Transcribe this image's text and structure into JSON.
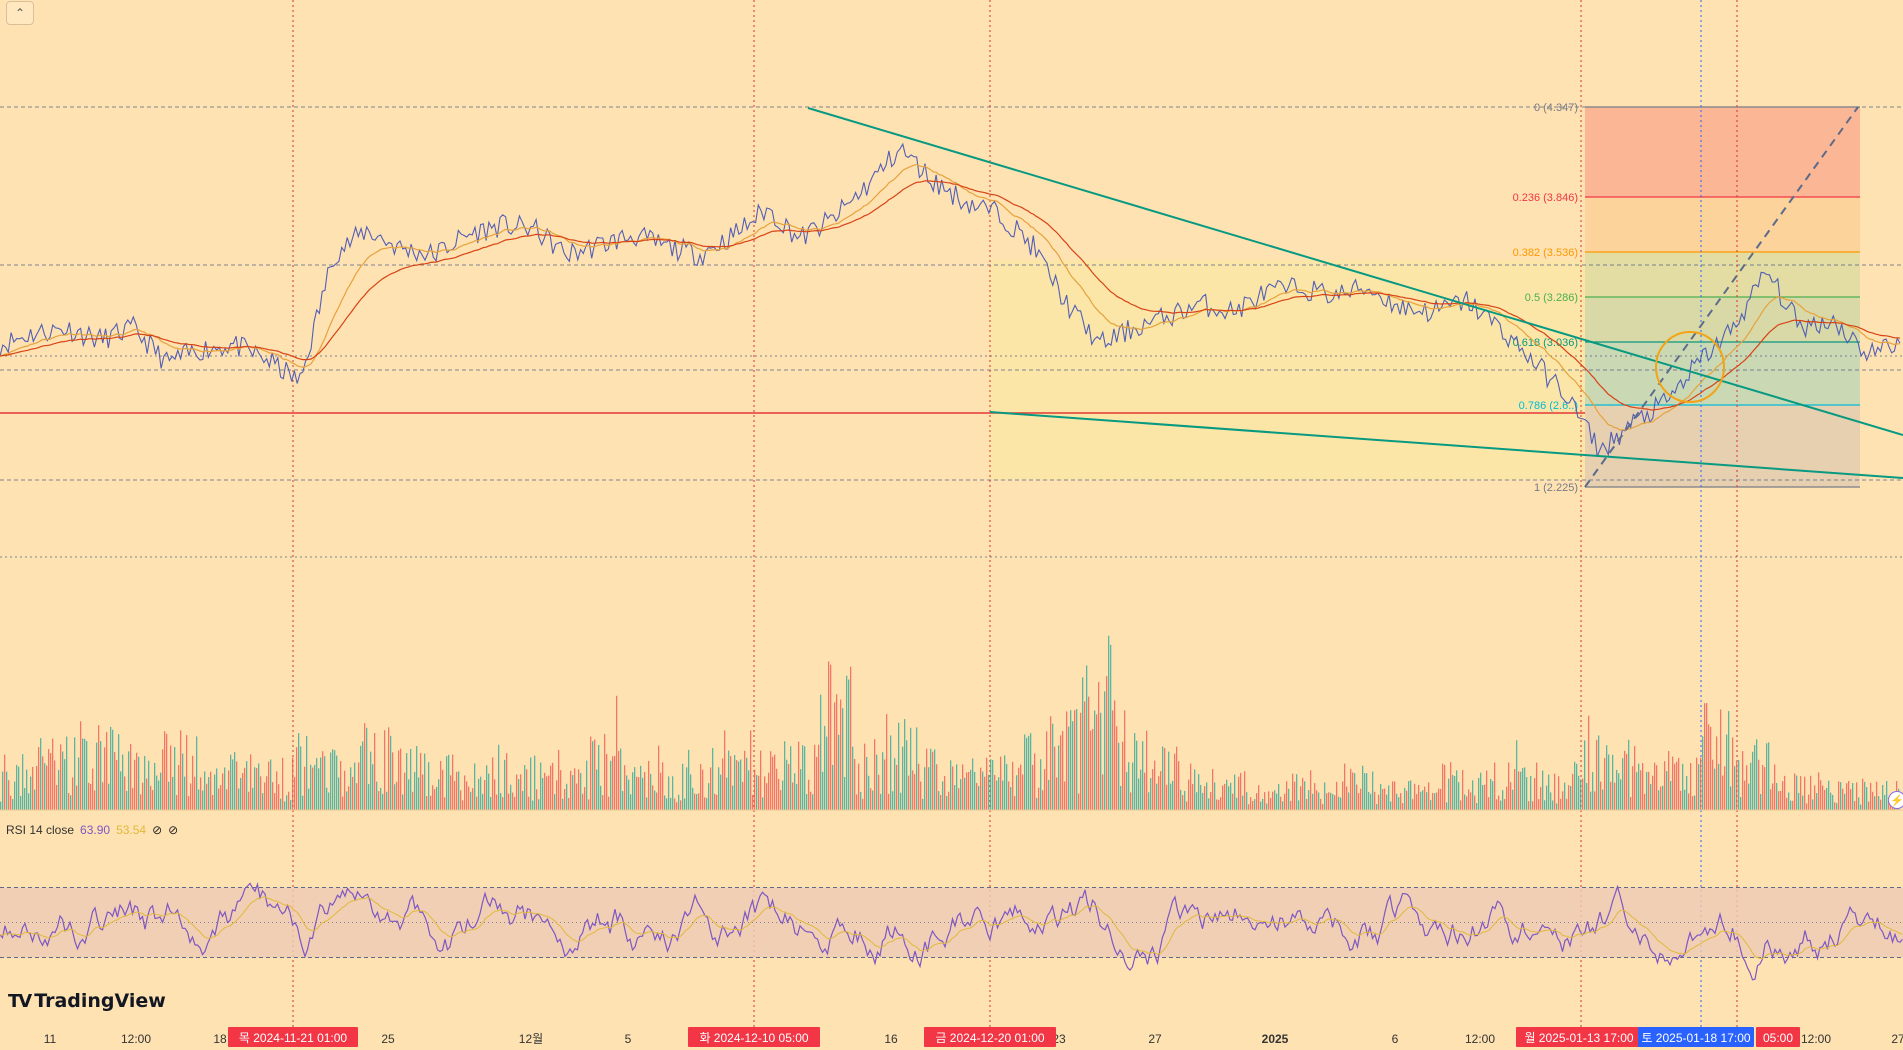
{
  "chart_data": [
    {
      "type": "line",
      "pane": "price",
      "series": [
        {
          "values": [
            2.95,
            3.02,
            3.05,
            2.98,
            3.05,
            2.84,
            2.92,
            2.95,
            2.86,
            2.72,
            3.5,
            3.65,
            3.54,
            3.5,
            3.62,
            3.68,
            3.66,
            3.5,
            3.56,
            3.62,
            3.55,
            3.5,
            3.62,
            3.78,
            3.6,
            3.72,
            3.92,
            4.15,
            3.95,
            3.82,
            3.75,
            3.55,
            3.2,
            2.95,
            3.05,
            3.12,
            3.2,
            3.15,
            3.27,
            3.3,
            3.25,
            3.3,
            3.18,
            3.15,
            3.22,
            3.05,
            2.85,
            2.64,
            2.3,
            2.47,
            2.6,
            2.85,
            3.05,
            3.4,
            3.06,
            3.1,
            2.9,
            2.96
          ]
        }
      ],
      "ylim": [
        2.0,
        4.6
      ]
    },
    {
      "type": "bar",
      "pane": "volume",
      "series": [
        {
          "values": [
            0.35,
            0.45,
            0.6,
            0.55,
            0.4,
            0.5,
            0.3,
            0.4,
            0.35,
            0.5,
            0.45,
            0.55,
            0.4,
            0.35,
            0.3,
            0.45,
            0.35,
            0.4,
            0.5,
            0.35,
            0.3,
            0.4,
            0.5,
            0.45,
            0.5,
            1.0,
            0.45,
            0.6,
            0.4,
            0.35,
            0.35,
            0.5,
            0.65,
            1.15,
            0.7,
            0.4,
            0.3,
            0.25,
            0.2,
            0.25,
            0.2,
            0.3,
            0.2,
            0.2,
            0.3,
            0.25,
            0.3,
            0.25,
            0.6,
            0.45,
            0.4,
            0.35,
            0.7,
            0.5,
            0.3,
            0.25,
            0.2,
            0.2
          ]
        }
      ]
    },
    {
      "type": "line",
      "pane": "rsi",
      "title": "RSI 14 close",
      "series": [
        {
          "name": "RSI",
          "last": "63.90"
        },
        {
          "name": "MA",
          "last": "53.54"
        }
      ],
      "ylim": [
        0,
        100
      ],
      "bands": [
        30,
        70
      ]
    }
  ],
  "fib_levels": [
    {
      "label": "0 (4.347)",
      "color": "#787b86"
    },
    {
      "label": "0.236 (3.846)",
      "color": "#f23645"
    },
    {
      "label": "0.382 (3.536)",
      "color": "#ff9800"
    },
    {
      "label": "0.5 (3.286)",
      "color": "#4caf50"
    },
    {
      "label": "0.618 (3.036)",
      "color": "#089981"
    },
    {
      "label": "0.786 (2.6..)",
      "color": "#00bcd4"
    },
    {
      "label": "1 (2.225)",
      "color": "#787b86"
    }
  ],
  "x_ticks": [
    "11",
    "12:00",
    "18",
    "25",
    "12월",
    "5",
    "16",
    "23",
    "27",
    "2025",
    "6",
    "12:00",
    "12:00",
    "27"
  ],
  "time_badges": [
    {
      "label": "목 2024-11-21   01:00",
      "color": "#f23645"
    },
    {
      "label": "화 2024-12-10   05:00",
      "color": "#f23645"
    },
    {
      "label": "금 2024-12-20   01:00",
      "color": "#f23645"
    },
    {
      "label": "월 2025-01-13   17:00",
      "color": "#f23645"
    },
    {
      "label": "토 2025-01-18   17:00",
      "color": "#2962ff"
    },
    {
      "label": "05:00",
      "color": "#f23645"
    }
  ],
  "rsi_legend": {
    "title": "RSI 14 close",
    "value": "63.90",
    "ma_value": "53.54"
  },
  "branding": {
    "name": "TradingView"
  },
  "colors": {
    "background": "#ffe2b2",
    "up": "#26a69a",
    "down": "#ef5350",
    "price_line": "#3f51b5",
    "trend": "#089981",
    "support": "#e53935",
    "rsi": "#7e57c2"
  }
}
